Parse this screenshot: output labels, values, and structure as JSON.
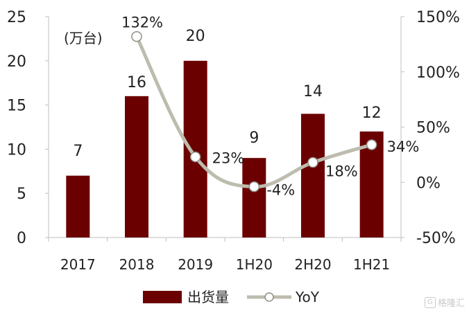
{
  "chart_data": {
    "type": "bar+line",
    "categories": [
      "2017",
      "2018",
      "2019",
      "1H20",
      "2H20",
      "1H21"
    ],
    "unit_label": "(万台)",
    "bars": {
      "name": "出货量",
      "color": "#6b0000",
      "values": [
        7,
        16,
        20,
        9,
        14,
        12
      ],
      "labels": [
        "7",
        "16",
        "20",
        "9",
        "14",
        "12"
      ]
    },
    "line": {
      "name": "YoY",
      "color": "#bdbcae",
      "values": [
        null,
        132,
        23,
        -4,
        18,
        34
      ],
      "labels": [
        "",
        "132%",
        "23%",
        "-4%",
        "18%",
        "34%"
      ]
    },
    "y_left": {
      "min": 0,
      "max": 25,
      "ticks": [
        "0",
        "5",
        "10",
        "15",
        "20",
        "25"
      ]
    },
    "y_right": {
      "min": -50,
      "max": 150,
      "ticks": [
        "-50%",
        "0%",
        "50%",
        "100%",
        "150%"
      ]
    },
    "grid": false,
    "legend_position": "bottom"
  },
  "watermark": {
    "text": "格隆汇",
    "mark": "G"
  }
}
